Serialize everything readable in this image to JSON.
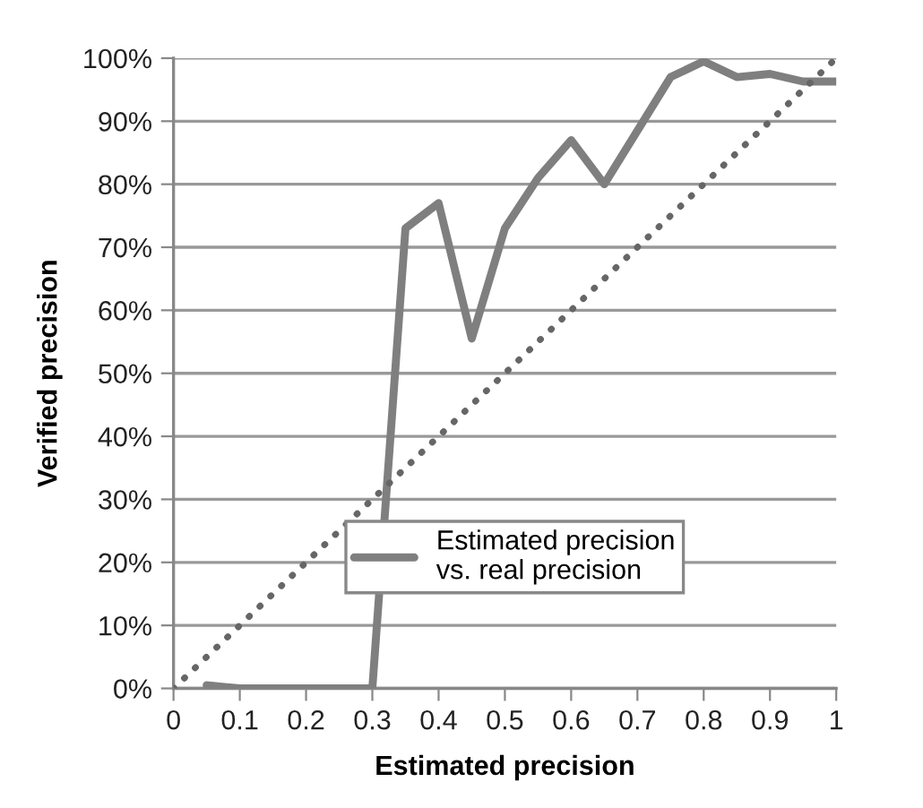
{
  "chart_data": {
    "type": "line",
    "xlabel": "Estimated precision",
    "ylabel": "Verified precision",
    "xlim": [
      0,
      1
    ],
    "xticks": [
      0,
      0.1,
      0.2,
      0.3,
      0.4,
      0.5,
      0.6,
      0.7,
      0.8,
      0.9,
      1
    ],
    "ylim": [
      0,
      100
    ],
    "yticks": [
      {
        "value": 0,
        "label": "0%"
      },
      {
        "value": 10,
        "label": "10%"
      },
      {
        "value": 20,
        "label": "20%"
      },
      {
        "value": 30,
        "label": "30%"
      },
      {
        "value": 40,
        "label": "40%"
      },
      {
        "value": 50,
        "label": "50%"
      },
      {
        "value": 60,
        "label": "60%"
      },
      {
        "value": 70,
        "label": "70%"
      },
      {
        "value": 80,
        "label": "80%"
      },
      {
        "value": 90,
        "label": "90%"
      },
      {
        "value": 100,
        "label": "100%"
      }
    ],
    "grid": "y",
    "legend": "bottom right",
    "series": [
      {
        "name": "Estimated precision vs. real precision",
        "color": "#7f7f7f",
        "line_style": "solid",
        "x": [
          0.05,
          0.1,
          0.15,
          0.2,
          0.25,
          0.3,
          0.35,
          0.4,
          0.45,
          0.5,
          0.55,
          0.6,
          0.65,
          0.7,
          0.75,
          0.8,
          0.85,
          0.9,
          0.95,
          1
        ],
        "values": [
          0.5,
          0,
          0,
          0,
          0,
          0,
          73,
          77,
          55.5,
          73,
          81,
          87,
          80,
          88.5,
          97,
          99.5,
          97,
          97.5,
          96.3,
          96.3
        ]
      },
      {
        "color": "#666666",
        "line_style": "dotted",
        "x": [
          0,
          1
        ],
        "values": [
          0,
          100
        ]
      }
    ]
  }
}
